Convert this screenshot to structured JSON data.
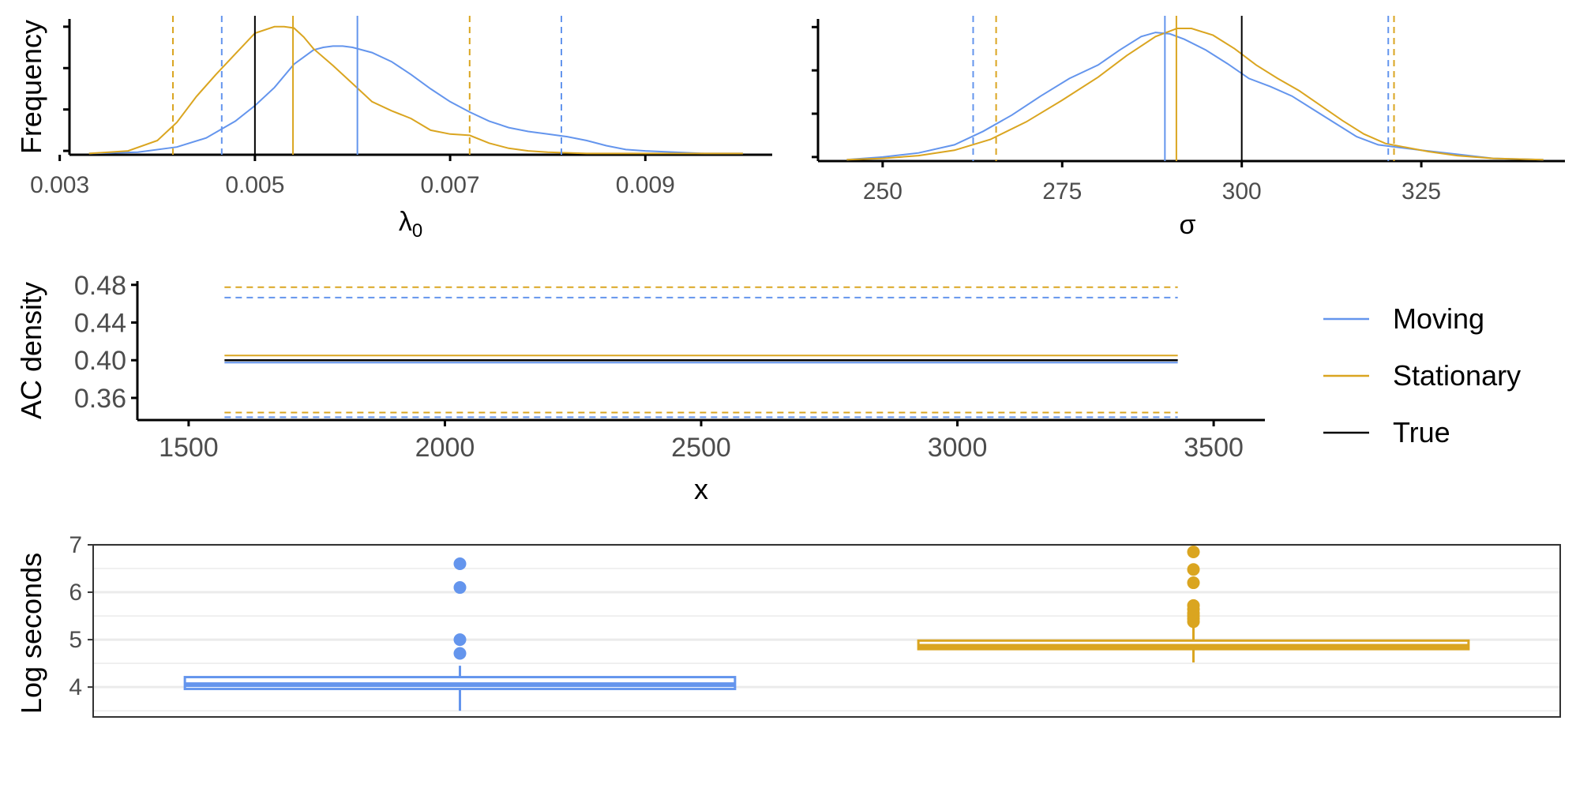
{
  "colors": {
    "moving": "#6495ED",
    "stationary": "#DAA520",
    "true": "#000000",
    "axis": "#000000",
    "tick_text": "#4d4d4d",
    "grid": "#ebebeb",
    "panel_border": "#333333"
  },
  "legend": {
    "entries": [
      {
        "label": "Moving",
        "color": "#6495ED",
        "line": "solid"
      },
      {
        "label": "Stationary",
        "color": "#DAA520",
        "line": "solid"
      },
      {
        "label": "True",
        "color": "#000000",
        "line": "solid"
      }
    ]
  },
  "chart_data": [
    {
      "type": "line",
      "id": "lambda0_density",
      "title": "",
      "xlabel": "λ0",
      "ylabel": "Frequency",
      "xlim": [
        0.0031,
        0.0103
      ],
      "ylim": [
        0,
        1.05
      ],
      "xticks": [
        0.003,
        0.005,
        0.007,
        0.009
      ],
      "xtick_labels": [
        "0.003",
        "0.005",
        "0.007",
        "0.009"
      ],
      "ytick_labels": [
        "",
        "",
        "",
        ""
      ],
      "yticks": [
        0.03,
        0.35,
        0.67,
        0.99
      ],
      "grid": false,
      "series": [
        {
          "name": "Moving",
          "color_key": "moving",
          "x": [
            0.0033,
            0.0038,
            0.0042,
            0.0045,
            0.0048,
            0.005,
            0.0052,
            0.0054,
            0.0056,
            0.0057,
            0.0058,
            0.0059,
            0.006,
            0.0062,
            0.0064,
            0.0066,
            0.0068,
            0.007,
            0.0072,
            0.0074,
            0.0076,
            0.0078,
            0.008,
            0.0082,
            0.0084,
            0.0086,
            0.0088,
            0.009,
            0.0093,
            0.0096,
            0.01
          ],
          "y": [
            0.01,
            0.02,
            0.06,
            0.13,
            0.26,
            0.38,
            0.52,
            0.7,
            0.81,
            0.83,
            0.84,
            0.84,
            0.83,
            0.79,
            0.72,
            0.62,
            0.51,
            0.41,
            0.33,
            0.26,
            0.21,
            0.18,
            0.16,
            0.14,
            0.11,
            0.07,
            0.04,
            0.03,
            0.02,
            0.01,
            0.01
          ]
        },
        {
          "name": "Stationary",
          "color_key": "stationary",
          "x": [
            0.0033,
            0.0037,
            0.004,
            0.0042,
            0.0044,
            0.0046,
            0.0048,
            0.005,
            0.0052,
            0.0053,
            0.0054,
            0.0055,
            0.0056,
            0.0058,
            0.006,
            0.0062,
            0.0064,
            0.0066,
            0.0068,
            0.007,
            0.0072,
            0.0074,
            0.0076,
            0.0078,
            0.008,
            0.0084,
            0.009,
            0.01
          ],
          "y": [
            0.01,
            0.03,
            0.11,
            0.25,
            0.45,
            0.62,
            0.78,
            0.94,
            0.99,
            0.99,
            0.98,
            0.91,
            0.82,
            0.69,
            0.55,
            0.41,
            0.34,
            0.28,
            0.19,
            0.16,
            0.15,
            0.09,
            0.05,
            0.03,
            0.02,
            0.01,
            0.01,
            0.01
          ]
        }
      ],
      "vlines": [
        {
          "x": 0.005,
          "color_key": "true",
          "style": "solid"
        },
        {
          "x": 0.00605,
          "color_key": "moving",
          "style": "solid"
        },
        {
          "x": 0.00466,
          "color_key": "moving",
          "style": "dashed"
        },
        {
          "x": 0.00814,
          "color_key": "moving",
          "style": "dashed"
        },
        {
          "x": 0.00539,
          "color_key": "stationary",
          "style": "solid"
        },
        {
          "x": 0.00416,
          "color_key": "stationary",
          "style": "dashed"
        },
        {
          "x": 0.0072,
          "color_key": "stationary",
          "style": "dashed"
        }
      ]
    },
    {
      "type": "line",
      "id": "sigma_density",
      "title": "",
      "xlabel": "σ",
      "ylabel": "",
      "xlim": [
        241,
        345
      ],
      "ylim": [
        0,
        1.05
      ],
      "xticks": [
        250,
        275,
        300,
        325
      ],
      "xtick_labels": [
        "250",
        "275",
        "300",
        "325"
      ],
      "yticks": [
        0.03,
        0.35,
        0.67,
        0.99
      ],
      "ytick_labels": [
        "",
        "",
        "",
        ""
      ],
      "grid": false,
      "series": [
        {
          "name": "Moving",
          "color_key": "moving",
          "x": [
            245,
            250,
            255,
            260,
            264,
            268,
            272,
            276,
            280,
            283,
            286,
            288,
            290,
            292,
            295,
            298,
            301,
            304,
            307,
            310,
            313,
            316,
            319,
            322,
            325,
            330,
            335,
            342
          ],
          "y": [
            0.01,
            0.03,
            0.06,
            0.12,
            0.22,
            0.34,
            0.48,
            0.61,
            0.71,
            0.82,
            0.92,
            0.95,
            0.94,
            0.9,
            0.82,
            0.72,
            0.61,
            0.55,
            0.48,
            0.38,
            0.28,
            0.18,
            0.12,
            0.1,
            0.08,
            0.05,
            0.02,
            0.01
          ]
        },
        {
          "name": "Stationary",
          "color_key": "stationary",
          "x": [
            245,
            250,
            255,
            260,
            265,
            270,
            275,
            280,
            284,
            288,
            291,
            293,
            296,
            299,
            302,
            305,
            308,
            311,
            314,
            317,
            320,
            323,
            326,
            330,
            335,
            342
          ],
          "y": [
            0.01,
            0.02,
            0.04,
            0.08,
            0.16,
            0.29,
            0.45,
            0.62,
            0.78,
            0.92,
            0.98,
            0.98,
            0.93,
            0.83,
            0.71,
            0.61,
            0.52,
            0.41,
            0.3,
            0.2,
            0.13,
            0.1,
            0.07,
            0.04,
            0.02,
            0.01
          ]
        }
      ],
      "vlines": [
        {
          "x": 300.0,
          "color_key": "true",
          "style": "solid"
        },
        {
          "x": 289.3,
          "color_key": "moving",
          "style": "solid"
        },
        {
          "x": 262.6,
          "color_key": "moving",
          "style": "dashed"
        },
        {
          "x": 320.4,
          "color_key": "moving",
          "style": "dashed"
        },
        {
          "x": 290.9,
          "color_key": "stationary",
          "style": "solid"
        },
        {
          "x": 265.8,
          "color_key": "stationary",
          "style": "dashed"
        },
        {
          "x": 321.2,
          "color_key": "stationary",
          "style": "dashed"
        }
      ]
    },
    {
      "type": "line",
      "id": "ac_density",
      "title": "",
      "xlabel": "x",
      "ylabel": "AC density",
      "xlim": [
        1400,
        3600
      ],
      "ylim": [
        0.3365,
        0.484
      ],
      "xticks": [
        1500,
        2000,
        2500,
        3000,
        3500
      ],
      "xtick_labels": [
        "1500",
        "2000",
        "2500",
        "3000",
        "3500"
      ],
      "yticks": [
        0.36,
        0.4,
        0.44,
        0.48
      ],
      "ytick_labels": [
        "0.36",
        "0.40",
        "0.44",
        "0.48"
      ],
      "grid": false,
      "hlines": [
        {
          "y": 0.4,
          "x0": 1570,
          "x1": 3430,
          "color_key": "true",
          "style": "solid"
        },
        {
          "y": 0.3975,
          "x0": 1570,
          "x1": 3430,
          "color_key": "moving",
          "style": "solid"
        },
        {
          "y": 0.405,
          "x0": 1570,
          "x1": 3430,
          "color_key": "stationary",
          "style": "solid"
        },
        {
          "y": 0.4665,
          "x0": 1570,
          "x1": 3430,
          "color_key": "moving",
          "style": "dashed"
        },
        {
          "y": 0.3395,
          "x0": 1570,
          "x1": 3430,
          "color_key": "moving",
          "style": "dashed"
        },
        {
          "y": 0.4775,
          "x0": 1570,
          "x1": 3430,
          "color_key": "stationary",
          "style": "dashed"
        },
        {
          "y": 0.3445,
          "x0": 1570,
          "x1": 3430,
          "color_key": "stationary",
          "style": "dashed"
        }
      ]
    },
    {
      "type": "box",
      "id": "log_seconds_box",
      "title": "",
      "xlabel": "",
      "ylabel": "Log seconds",
      "ylim": [
        3.37,
        7.0
      ],
      "yticks": [
        4,
        5,
        6,
        7
      ],
      "ytick_labels": [
        "4",
        "5",
        "6",
        "7"
      ],
      "grid": true,
      "boxes": [
        {
          "name": "Moving",
          "color_key": "moving",
          "q1": 3.96,
          "median": 4.05,
          "q3": 4.21,
          "whisker_low": 3.5,
          "whisker_high": 4.45,
          "outliers": [
            4.71,
            5.0,
            6.1,
            6.6
          ]
        },
        {
          "name": "Stationary",
          "color_key": "stationary",
          "q1": 4.8,
          "median": 4.86,
          "q3": 4.98,
          "whisker_low": 4.52,
          "whisker_high": 5.28,
          "outliers": [
            5.38,
            5.44,
            5.5,
            5.56,
            5.64,
            5.72,
            6.2,
            6.48,
            6.85
          ]
        }
      ]
    }
  ]
}
